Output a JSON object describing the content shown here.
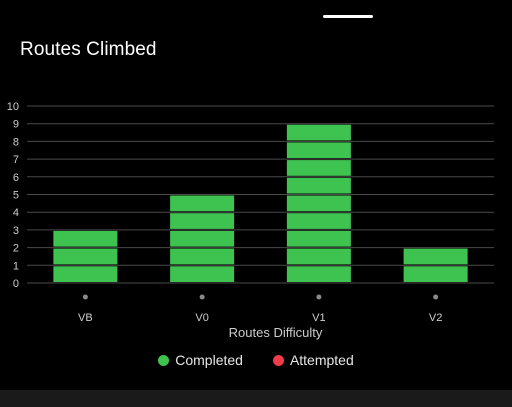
{
  "title": "Routes Climbed",
  "chart_data": {
    "type": "bar",
    "stacked_units": true,
    "categories": [
      "VB",
      "V0",
      "V1",
      "V2"
    ],
    "series": [
      {
        "name": "Completed",
        "values": [
          3,
          5,
          9,
          2
        ]
      },
      {
        "name": "Attempted",
        "values": [
          0,
          0,
          0,
          0
        ]
      }
    ],
    "xlabel": "Routes Difficulty",
    "ylabel": "",
    "ylim": [
      0,
      10
    ],
    "yticks": [
      0,
      1,
      2,
      3,
      4,
      5,
      6,
      7,
      8,
      9,
      10
    ],
    "grid": true,
    "legend_position": "bottom"
  },
  "legend": [
    {
      "label": "Completed",
      "color": "#3fc350"
    },
    {
      "label": "Attempted",
      "color": "#ef3b4a"
    }
  ],
  "colors": {
    "completed": "#3fc350",
    "attempted": "#ef3b4a",
    "grid": "#4a4a4a",
    "axis_text": "#cccccc",
    "tick_dot": "#8a8a8a"
  }
}
